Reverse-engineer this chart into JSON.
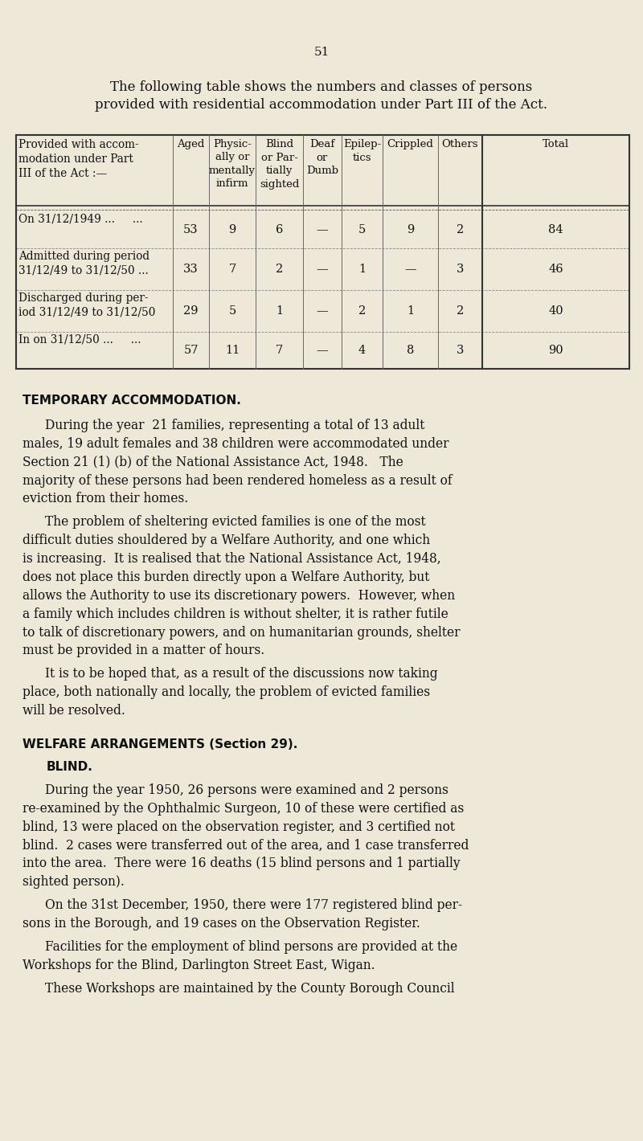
{
  "bg_color": "#ede8d8",
  "text_color": "#111111",
  "page_number": "51",
  "intro_line1": "The following table shows the numbers and classes of persons",
  "intro_line2": "provided with residential accommodation under Part III of the Act.",
  "col_header_0": "Provided with accom-\nmodation under Part\nIII of the Act :—",
  "col_header_1": "Aged",
  "col_header_2": "Physic-\nally or\nmentally\ninfirm",
  "col_header_3": "Blind\nor Par-\ntially\nsighted",
  "col_header_4": "Deaf\nor\nDumb",
  "col_header_5": "Epilep-\ntics",
  "col_header_6": "Crippled",
  "col_header_7": "Others",
  "col_header_8": "Total",
  "row0_label": "On 31/12/1949 ...     ...",
  "row0_vals": [
    "53",
    "9",
    "6",
    "—",
    "5",
    "9",
    "2",
    "84"
  ],
  "row1_label": "Admitted during period\n31/12/49 to 31/12/50 ...",
  "row1_vals": [
    "33",
    "7",
    "2",
    "—",
    "1",
    "—",
    "3",
    "46"
  ],
  "row2_label": "Discharged during per-\niod 31/12/49 to 31/12/50",
  "row2_vals": [
    "29",
    "5",
    "1",
    "—",
    "2",
    "1",
    "2",
    "40"
  ],
  "row3_label": "In on 31/12/50 ...     ...",
  "row3_vals": [
    "57",
    "11",
    "7",
    "—",
    "4",
    "8",
    "3",
    "90"
  ],
  "sec1_title": "TEMPORARY ACCOMMODATION.",
  "sec1_p1": "During the year  21 families, representing a total of 13 adult\nmales, 19 adult females and 38 children were accommodated under\nSection 21 (1) (b) of the National Assistance Act, 1948.   The\nmajority of these persons had been rendered homeless as a result of\neviction from their homes.",
  "sec1_p2": "The problem of sheltering evicted families is one of the most\ndifficult duties shouldered by a Welfare Authority, and one which\nis increasing.  It is realised that the National Assistance Act, 1948,\ndoes not place this burden directly upon a Welfare Authority, but\nallows the Authority to use its discretionary powers.  However, when\na family which includes children is without shelter, it is rather futile\nto talk of discretionary powers, and on humanitarian grounds, shelter\nmust be provided in a matter of hours.",
  "sec1_p3": "It is to be hoped that, as a result of the discussions now taking\nplace, both nationally and locally, the problem of evicted families\nwill be resolved.",
  "sec2_title": "WELFARE ARRANGEMENTS (Section 29).",
  "sec2_sub": "BLIND.",
  "sec2_p1": "During the year 1950, 26 persons were examined and 2 persons\nre-examined by the Ophthalmic Surgeon, 10 of these were certified as\nblind, 13 were placed on the observation register, and 3 certified not\nblind.  2 cases were transferred out of the area, and 1 case transferred\ninto the area.  There were 16 deaths (15 blind persons and 1 partially\nsighted person).",
  "sec2_p2": "On the 31st December, 1950, there were 177 registered blind per-\nsons in the Borough, and 19 cases on the Observation Register.",
  "sec2_p3": "Facilities for the employment of blind persons are provided at the\nWorkshops for the Blind, Darlington Street East, Wigan.",
  "sec2_p4": "These Workshops are maintained by the County Borough Council"
}
